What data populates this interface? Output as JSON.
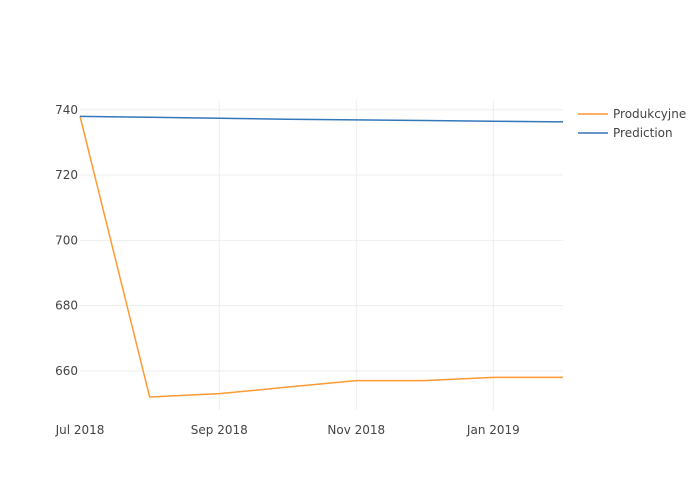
{
  "chart_data": {
    "type": "line",
    "title": "",
    "xlabel": "",
    "ylabel": "",
    "x_ticks": [
      "Jul 2018",
      "Sep 2018",
      "Nov 2018",
      "Jan 2019"
    ],
    "y_ticks": [
      660,
      680,
      700,
      720,
      740
    ],
    "xlim": [
      "2018-07-01",
      "2019-02-01"
    ],
    "ylim": [
      648,
      743
    ],
    "grid": true,
    "legend_position": "top-right",
    "series": [
      {
        "name": "Produkcyjne",
        "color": "#ff9933",
        "x": [
          "2018-07-01",
          "2018-08-01",
          "2018-09-01",
          "2018-10-01",
          "2018-11-01",
          "2018-12-01",
          "2019-01-01",
          "2019-02-01"
        ],
        "y": [
          738,
          652,
          653,
          655,
          657,
          657,
          658,
          658
        ]
      },
      {
        "name": "Prediction",
        "color": "#3377bb",
        "x": [
          "2018-07-01",
          "2018-08-01",
          "2018-09-01",
          "2018-10-01",
          "2018-11-01",
          "2018-12-01",
          "2019-01-01",
          "2019-02-01"
        ],
        "y": [
          738.0,
          737.7,
          737.4,
          737.1,
          736.9,
          736.7,
          736.5,
          736.3
        ]
      }
    ]
  }
}
